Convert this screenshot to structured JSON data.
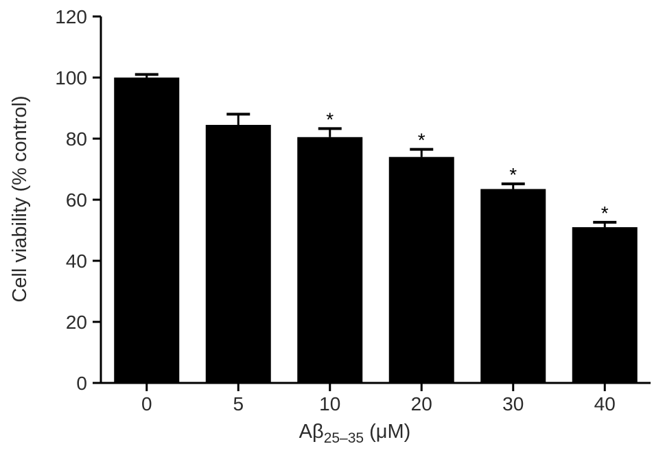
{
  "chart_data": {
    "type": "bar",
    "categories": [
      "0",
      "5",
      "10",
      "20",
      "30",
      "40"
    ],
    "values": [
      100,
      84.5,
      80.5,
      74,
      63.5,
      51
    ],
    "error": [
      1.0,
      3.5,
      2.8,
      2.5,
      1.7,
      1.6
    ],
    "significance": [
      "",
      "",
      "*",
      "*",
      "*",
      "*"
    ],
    "ylim": [
      0,
      120
    ],
    "yticks": [
      "0",
      "20",
      "40",
      "60",
      "80",
      "100",
      "120"
    ],
    "ylabel": "Cell viability (% control)",
    "xlabel": {
      "prefix": "Aβ",
      "subscript": "25–35",
      "suffix": " (μM)"
    },
    "bar_color": "#000000",
    "axis_color": "#000000",
    "text_color": "#2b2b2b",
    "grid": false,
    "legend": "none"
  }
}
